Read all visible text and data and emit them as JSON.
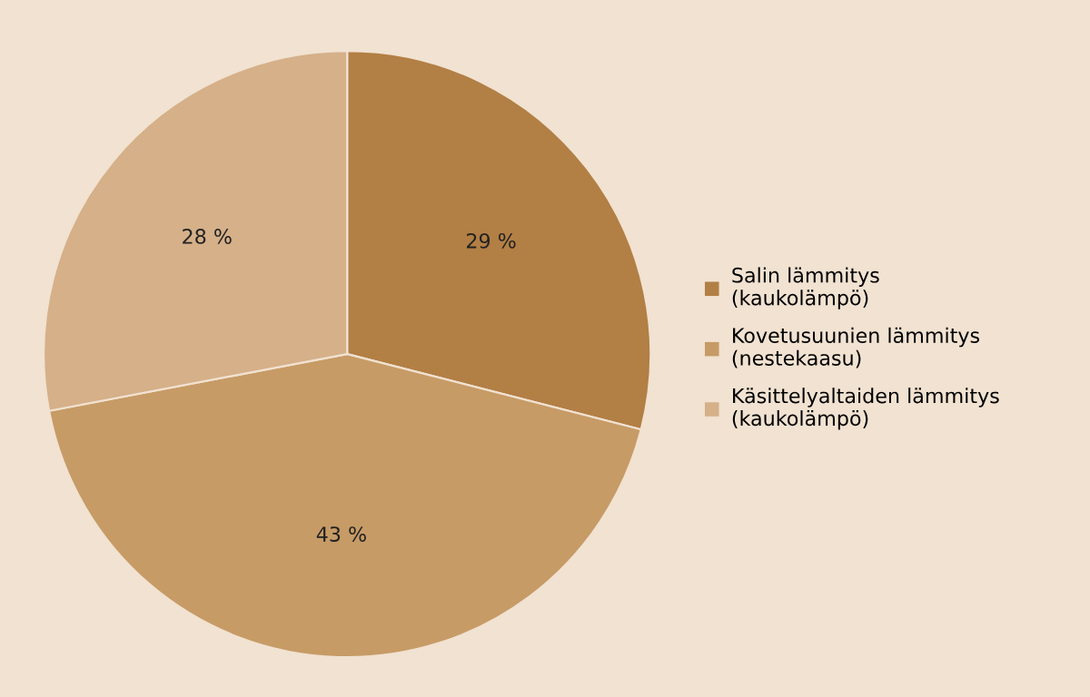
{
  "chart_data": {
    "type": "pie",
    "categories": [
      "Salin lämmitys\n(kaukolämpö)",
      "Kovetusuunien lämmitys\n(nestekaasu)",
      "Käsittelyaltaiden lämmitys\n(kaukolämpö)"
    ],
    "values": [
      29,
      43,
      28
    ],
    "value_labels": [
      "29 %",
      "43 %",
      "28 %"
    ],
    "colors": [
      "#b27f45",
      "#c79b66",
      "#d5b089"
    ],
    "legend": "right"
  }
}
